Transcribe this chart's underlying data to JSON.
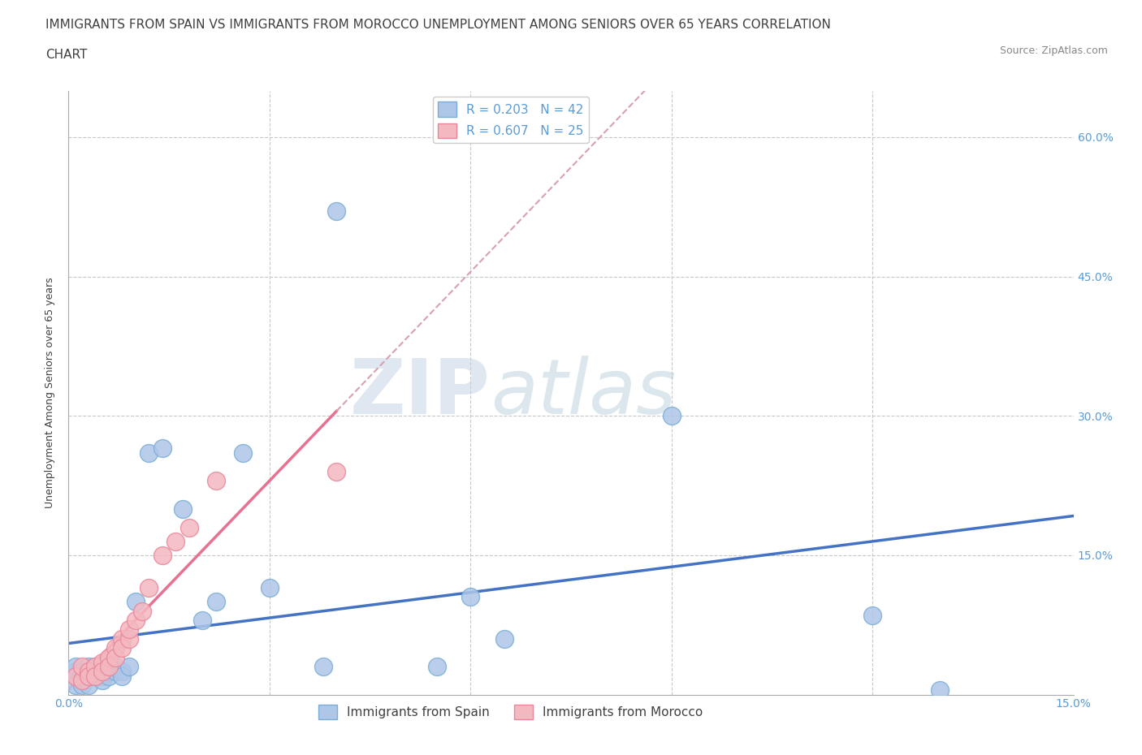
{
  "title_line1": "IMMIGRANTS FROM SPAIN VS IMMIGRANTS FROM MOROCCO UNEMPLOYMENT AMONG SENIORS OVER 65 YEARS CORRELATION",
  "title_line2": "CHART",
  "source_text": "Source: ZipAtlas.com",
  "ylabel": "Unemployment Among Seniors over 65 years",
  "xlim": [
    0.0,
    0.15
  ],
  "ylim": [
    0.0,
    0.65
  ],
  "background_color": "#ffffff",
  "grid_color": "#c8c8c8",
  "watermark_color": "#d0dce8",
  "spain_color": "#aec6e8",
  "spain_edge_color": "#7aaed6",
  "morocco_color": "#f4b8c1",
  "morocco_edge_color": "#e8879a",
  "spain_line_color": "#4472c4",
  "morocco_line_color": "#e87090",
  "morocco_dashed_color": "#d8a0b0",
  "tick_color": "#5b9bd5",
  "text_color": "#404040",
  "R_spain": 0.203,
  "N_spain": 42,
  "R_morocco": 0.607,
  "N_morocco": 25,
  "legend_label_spain": "Immigrants from Spain",
  "legend_label_morocco": "Immigrants from Morocco",
  "title_fontsize": 11,
  "axis_label_fontsize": 9,
  "tick_fontsize": 10,
  "legend_fontsize": 11,
  "source_fontsize": 9,
  "spain_scatter_x": [
    0.001,
    0.001,
    0.001,
    0.001,
    0.002,
    0.002,
    0.002,
    0.002,
    0.003,
    0.003,
    0.003,
    0.003,
    0.004,
    0.004,
    0.004,
    0.005,
    0.005,
    0.005,
    0.006,
    0.006,
    0.006,
    0.007,
    0.007,
    0.008,
    0.008,
    0.009,
    0.01,
    0.012,
    0.014,
    0.017,
    0.02,
    0.022,
    0.026,
    0.03,
    0.038,
    0.04,
    0.055,
    0.06,
    0.065,
    0.09,
    0.12,
    0.13
  ],
  "spain_scatter_y": [
    0.02,
    0.025,
    0.03,
    0.01,
    0.015,
    0.02,
    0.025,
    0.01,
    0.02,
    0.025,
    0.03,
    0.01,
    0.025,
    0.02,
    0.03,
    0.025,
    0.02,
    0.015,
    0.035,
    0.025,
    0.02,
    0.03,
    0.025,
    0.025,
    0.02,
    0.03,
    0.1,
    0.26,
    0.265,
    0.2,
    0.08,
    0.1,
    0.26,
    0.115,
    0.03,
    0.52,
    0.03,
    0.105,
    0.06,
    0.3,
    0.085,
    0.005
  ],
  "morocco_scatter_x": [
    0.001,
    0.002,
    0.002,
    0.003,
    0.003,
    0.004,
    0.004,
    0.005,
    0.005,
    0.006,
    0.006,
    0.007,
    0.007,
    0.008,
    0.008,
    0.009,
    0.009,
    0.01,
    0.011,
    0.012,
    0.014,
    0.016,
    0.018,
    0.022,
    0.04
  ],
  "morocco_scatter_y": [
    0.02,
    0.015,
    0.03,
    0.025,
    0.02,
    0.03,
    0.02,
    0.035,
    0.025,
    0.04,
    0.03,
    0.05,
    0.04,
    0.06,
    0.05,
    0.06,
    0.07,
    0.08,
    0.09,
    0.115,
    0.15,
    0.165,
    0.18,
    0.23,
    0.24
  ]
}
